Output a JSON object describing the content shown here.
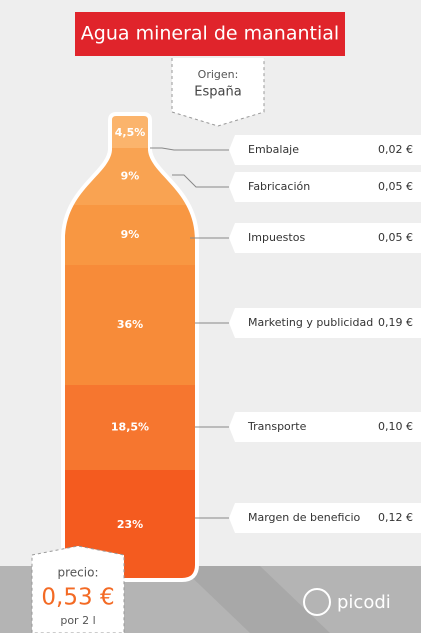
{
  "header": {
    "title": "Agua mineral de manantial",
    "origin_label": "Origen:",
    "origin": "España"
  },
  "segments": [
    {
      "percent": "4,5%",
      "label": "Embalaje",
      "price": "0,02 €"
    },
    {
      "percent": "9%",
      "label": "Fabricación",
      "price": "0,05 €"
    },
    {
      "percent": "9%",
      "label": "Impuestos",
      "price": "0,05 €"
    },
    {
      "percent": "36%",
      "label": "Marketing y publicidad",
      "price": "0,19 €"
    },
    {
      "percent": "18,5%",
      "label": "Transporte",
      "price": "0,10 €"
    },
    {
      "percent": "23%",
      "label": "Margen de beneficio",
      "price": "0,12 €"
    }
  ],
  "price": {
    "label": "precio:",
    "value": "0,53 €",
    "unit": "por 2 l"
  },
  "brand": "picodi"
}
